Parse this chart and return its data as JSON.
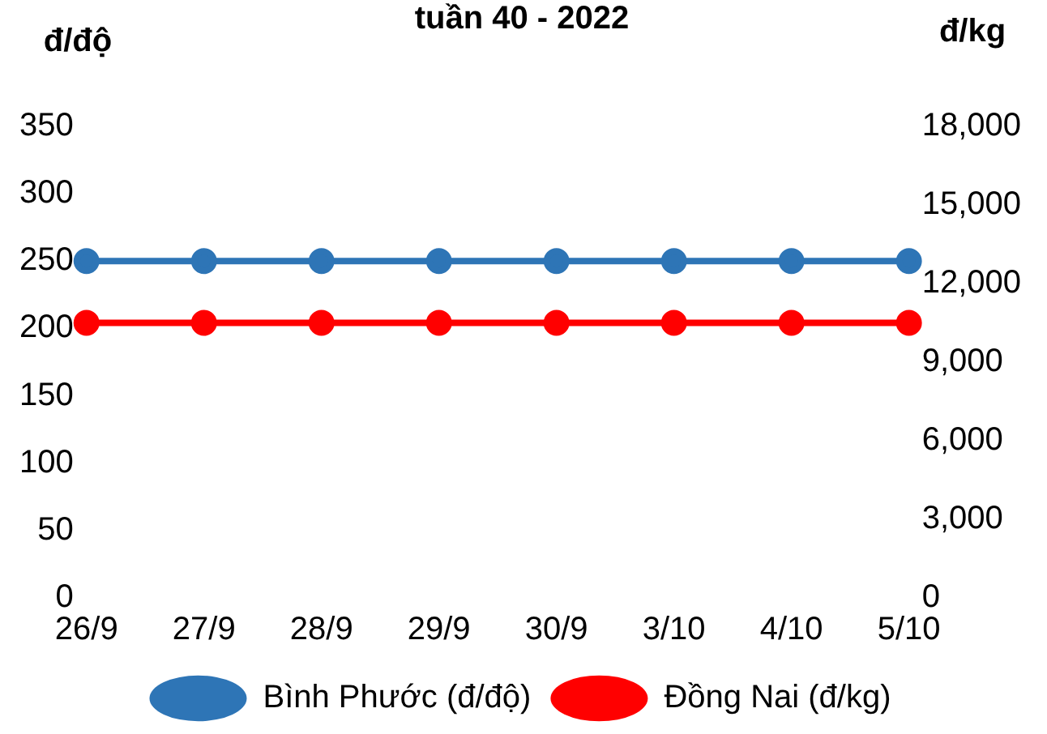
{
  "chart_data": {
    "type": "line",
    "title": "tuần 40 - 2022",
    "ylabel": "đ/độ",
    "y2label": "đ/kg",
    "categories": [
      "26/9",
      "27/9",
      "28/9",
      "29/9",
      "30/9",
      "3/10",
      "4/10",
      "5/10"
    ],
    "series": [
      {
        "name": "Bình Phước (đ/độ)",
        "color": "#2e75b6",
        "values": [
          250,
          250,
          250,
          250,
          250,
          250,
          250,
          250
        ]
      },
      {
        "name": "Đồng Nai (đ/kg)",
        "color": "#ff0000",
        "axis": "y2",
        "values": [
          10500,
          10500,
          10500,
          10500,
          10500,
          10500,
          10500,
          10500
        ]
      }
    ],
    "ylim": [
      0,
      350
    ],
    "yticks": [
      0,
      50,
      100,
      150,
      200,
      250,
      300,
      350
    ],
    "y2lim": [
      0,
      18000
    ],
    "y2ticks": [
      {
        "value": 0,
        "label": "0"
      },
      {
        "value": 3000,
        "label": "3,000"
      },
      {
        "value": 6000,
        "label": "6,000"
      },
      {
        "value": 9000,
        "label": "9,000"
      },
      {
        "value": 12000,
        "label": "12,000"
      },
      {
        "value": 15000,
        "label": "15,000"
      },
      {
        "value": 18000,
        "label": "18,000"
      }
    ],
    "grid": false,
    "legend": "bottom",
    "marker": "circle",
    "line_style": "solid"
  }
}
